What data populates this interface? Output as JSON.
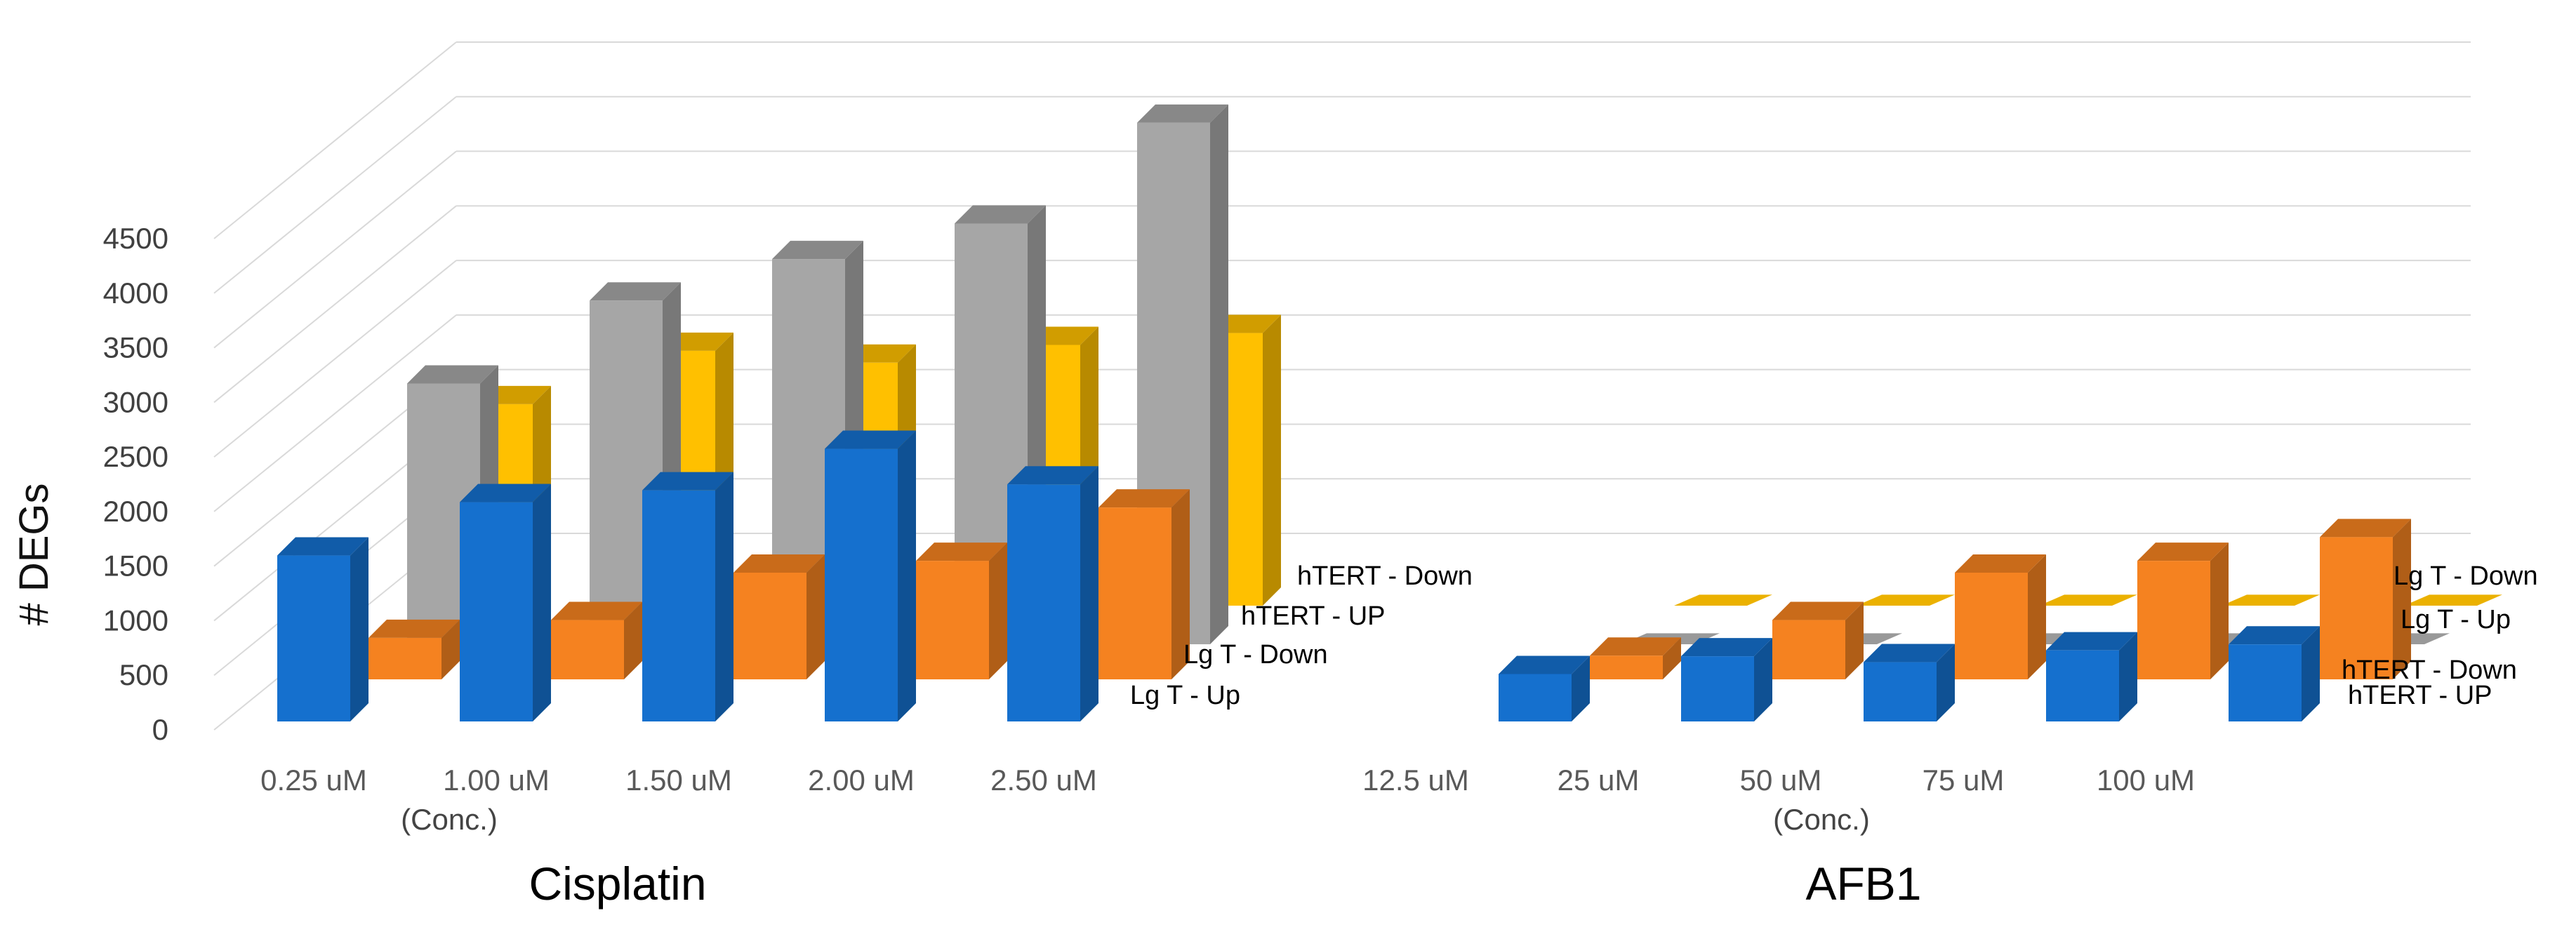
{
  "chart_data": [
    {
      "type": "bar",
      "subtype": "3d-clustered",
      "title": "Cisplatin",
      "xlabel": "(Conc.)",
      "ylabel": "# DEGs",
      "ylim": [
        0,
        4500
      ],
      "yticks": [
        "0",
        "500",
        "1000",
        "1500",
        "2000",
        "2500",
        "3000",
        "3500",
        "4000",
        "4500"
      ],
      "categories": [
        "0.25 uM",
        "1.00 uM",
        "1.50 uM",
        "2.00 uM",
        "2.50 uM"
      ],
      "grid": true,
      "series": [
        {
          "name": "Lg T - Up",
          "color": "#1570CE",
          "values": [
            1400,
            1850,
            1950,
            2300,
            2000
          ]
        },
        {
          "name": "Lg T - Down",
          "color": "#F58220",
          "values": [
            350,
            500,
            900,
            1000,
            1450
          ]
        },
        {
          "name": "hTERT - UP",
          "color": "#A6A6A6",
          "values": [
            2200,
            2900,
            3250,
            3550,
            4400
          ]
        },
        {
          "name": "hTERT - Down",
          "color": "#FFC000",
          "values": [
            1700,
            2150,
            2050,
            2200,
            2300
          ]
        }
      ]
    },
    {
      "type": "bar",
      "subtype": "3d-clustered",
      "title": "AFB1",
      "xlabel": "(Conc.)",
      "categories": [
        "12.5 uM",
        "25 uM",
        "50 uM",
        "75 uM",
        "100 uM"
      ],
      "grid": true,
      "series": [
        {
          "name": "Lg T - Up",
          "color": "#1570CE",
          "values": [
            400,
            550,
            500,
            600,
            650
          ]
        },
        {
          "name": "Lg T - Down",
          "color": "#F58220",
          "values": [
            200,
            500,
            900,
            1000,
            1200
          ]
        },
        {
          "name": "hTERT - UP",
          "color": "#A6A6A6",
          "values": [
            0,
            0,
            0,
            0,
            0
          ]
        },
        {
          "name": "hTERT - Down",
          "color": "#FFC000",
          "values": [
            0,
            0,
            0,
            0,
            0
          ]
        }
      ]
    }
  ]
}
